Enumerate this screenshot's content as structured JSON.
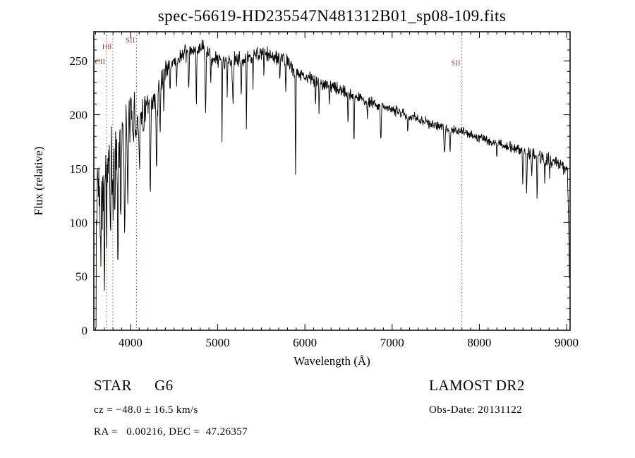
{
  "title": "spec-56619-HD235547N481312B01_sp08-109.fits",
  "footer": {
    "object_class": "STAR",
    "subclass": "G6",
    "cz": "cz = −48.0 ± 16.5 km/s",
    "ra_dec": "RA =   0.00216, DEC =  47.26357",
    "survey": "LAMOST DR2",
    "obs_date": "Obs-Date: 20131122"
  },
  "chart_data": {
    "type": "line",
    "title": "spec-56619-HD235547N481312B01_sp08-109.fits",
    "xlabel": "Wavelength (Å)",
    "ylabel": "Flux (relative)",
    "xlim": [
      3580,
      9040
    ],
    "ylim": [
      0,
      277
    ],
    "x_tick_values": [
      4000,
      5000,
      6000,
      7000,
      8000,
      9000
    ],
    "x_minor_step": 100,
    "y_tick_values": [
      0,
      50,
      100,
      150,
      200,
      250
    ],
    "y_minor_step": 10,
    "grid": false,
    "legend": "none",
    "line_color": "#000000",
    "marker_color": "#9a4a42",
    "marker_lines": [
      {
        "label": "CII",
        "wavelength": 3727,
        "label_flux": 247
      },
      {
        "label": "Hθ",
        "wavelength": 3798,
        "label_flux": 261
      },
      {
        "label": "SII",
        "wavelength": 4068,
        "label_flux": 267
      },
      {
        "label": "SII",
        "wavelength": 7800,
        "label_flux": 246
      }
    ],
    "continuum": [
      [
        3605,
        0
      ],
      [
        3610,
        100
      ],
      [
        3620,
        135
      ],
      [
        3650,
        140
      ],
      [
        3680,
        135
      ],
      [
        3710,
        145
      ],
      [
        3740,
        150
      ],
      [
        3780,
        155
      ],
      [
        3810,
        160
      ],
      [
        3840,
        170
      ],
      [
        3870,
        175
      ],
      [
        3900,
        185
      ],
      [
        3950,
        192
      ],
      [
        4000,
        196
      ],
      [
        4050,
        200
      ],
      [
        4100,
        202
      ],
      [
        4150,
        206
      ],
      [
        4200,
        205
      ],
      [
        4250,
        208
      ],
      [
        4300,
        218
      ],
      [
        4350,
        232
      ],
      [
        4400,
        242
      ],
      [
        4450,
        246
      ],
      [
        4500,
        250
      ],
      [
        4550,
        252
      ],
      [
        4600,
        255
      ],
      [
        4650,
        256
      ],
      [
        4700,
        258
      ],
      [
        4750,
        260
      ],
      [
        4800,
        262
      ],
      [
        4850,
        260
      ],
      [
        4900,
        257
      ],
      [
        4950,
        253
      ],
      [
        5000,
        251
      ],
      [
        5100,
        250
      ],
      [
        5200,
        252
      ],
      [
        5300,
        250
      ],
      [
        5400,
        255
      ],
      [
        5500,
        257
      ],
      [
        5600,
        255
      ],
      [
        5700,
        252
      ],
      [
        5800,
        249
      ],
      [
        5850,
        244
      ],
      [
        5900,
        240
      ],
      [
        6000,
        236
      ],
      [
        6100,
        232
      ],
      [
        6200,
        229
      ],
      [
        6300,
        226
      ],
      [
        6400,
        223
      ],
      [
        6500,
        220
      ],
      [
        6600,
        216
      ],
      [
        6700,
        213
      ],
      [
        6800,
        210
      ],
      [
        6900,
        207
      ],
      [
        7000,
        205
      ],
      [
        7100,
        202
      ],
      [
        7200,
        199
      ],
      [
        7300,
        196
      ],
      [
        7400,
        193
      ],
      [
        7500,
        190
      ],
      [
        7600,
        188
      ],
      [
        7700,
        186
      ],
      [
        7800,
        184
      ],
      [
        7900,
        181
      ],
      [
        8000,
        179
      ],
      [
        8100,
        176
      ],
      [
        8200,
        174
      ],
      [
        8300,
        171
      ],
      [
        8400,
        169
      ],
      [
        8500,
        166
      ],
      [
        8600,
        164
      ],
      [
        8700,
        161
      ],
      [
        8800,
        158
      ],
      [
        8900,
        154
      ],
      [
        9000,
        151
      ],
      [
        9010,
        149
      ],
      [
        9025,
        90
      ],
      [
        9035,
        38
      ]
    ],
    "absorption_lines": [
      [
        3660,
        60,
        5
      ],
      [
        3701,
        85,
        5
      ],
      [
        3728,
        40,
        4
      ],
      [
        3770,
        60,
        5
      ],
      [
        3798,
        50,
        4
      ],
      [
        3820,
        45,
        4
      ],
      [
        3855,
        120,
        5
      ],
      [
        3890,
        70,
        5
      ],
      [
        3933,
        80,
        6
      ],
      [
        3968,
        70,
        6
      ],
      [
        4026,
        30,
        4
      ],
      [
        4068,
        35,
        4
      ],
      [
        4101,
        45,
        5
      ],
      [
        4144,
        30,
        4
      ],
      [
        4227,
        90,
        5
      ],
      [
        4300,
        55,
        7
      ],
      [
        4340,
        40,
        5
      ],
      [
        4383,
        35,
        4
      ],
      [
        4455,
        25,
        4
      ],
      [
        4531,
        25,
        4
      ],
      [
        4668,
        30,
        4
      ],
      [
        4755,
        60,
        3
      ],
      [
        4861,
        60,
        5
      ],
      [
        4920,
        30,
        3
      ],
      [
        5050,
        80,
        3
      ],
      [
        5110,
        30,
        3
      ],
      [
        5175,
        45,
        6
      ],
      [
        5270,
        35,
        4
      ],
      [
        5330,
        65,
        3
      ],
      [
        5405,
        30,
        3
      ],
      [
        5530,
        25,
        3
      ],
      [
        5711,
        25,
        3
      ],
      [
        5780,
        30,
        3
      ],
      [
        5893,
        95,
        4
      ],
      [
        6122,
        25,
        3
      ],
      [
        6162,
        25,
        3
      ],
      [
        6280,
        20,
        3
      ],
      [
        6495,
        30,
        4
      ],
      [
        6563,
        45,
        4
      ],
      [
        6717,
        20,
        3
      ],
      [
        6870,
        30,
        5
      ],
      [
        7180,
        15,
        4
      ],
      [
        7600,
        25,
        6
      ],
      [
        7665,
        20,
        4
      ],
      [
        8200,
        15,
        4
      ],
      [
        8498,
        30,
        4
      ],
      [
        8542,
        40,
        4
      ],
      [
        8600,
        25,
        3
      ],
      [
        8662,
        40,
        4
      ],
      [
        8750,
        25,
        3
      ],
      [
        8806,
        20,
        3
      ]
    ],
    "noise_profile": [
      [
        3605,
        25
      ],
      [
        3700,
        28
      ],
      [
        3800,
        26
      ],
      [
        3900,
        22
      ],
      [
        4000,
        16
      ],
      [
        4100,
        14
      ],
      [
        4200,
        12
      ],
      [
        4300,
        9
      ],
      [
        4400,
        7
      ],
      [
        4600,
        6
      ],
      [
        5000,
        5.5
      ],
      [
        5500,
        5
      ],
      [
        6000,
        4.5
      ],
      [
        6500,
        4
      ],
      [
        7000,
        3.5
      ],
      [
        7500,
        3.2
      ],
      [
        8000,
        3.2
      ],
      [
        8500,
        4
      ],
      [
        8800,
        4.5
      ],
      [
        9000,
        5
      ]
    ],
    "noise_seed": 42,
    "sample_step": 4
  }
}
